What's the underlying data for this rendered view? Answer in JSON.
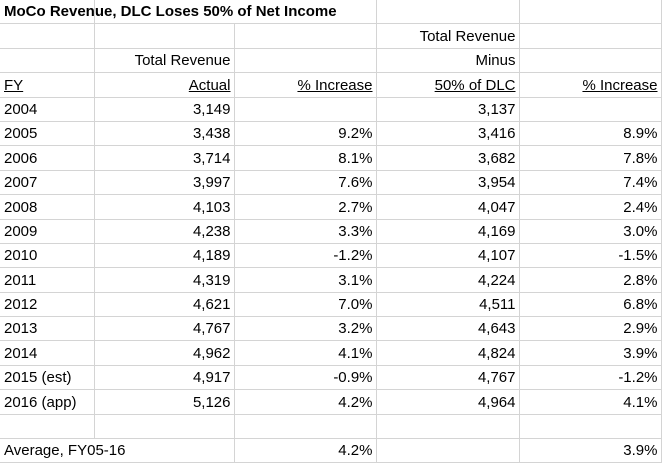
{
  "title": "MoCo Revenue, DLC Loses 50% of Net Income",
  "headers": {
    "actual_line1": "Total Revenue",
    "actual_line2": "Actual",
    "minus_line1": "Total Revenue",
    "minus_line2": "Minus",
    "minus_line3": "50% of DLC",
    "fy": "FY",
    "pct1": "% Increase",
    "pct2": "% Increase"
  },
  "rows": [
    {
      "fy": "2004",
      "actual": "3,149",
      "pct1": "",
      "minus": "3,137",
      "pct2": ""
    },
    {
      "fy": "2005",
      "actual": "3,438",
      "pct1": "9.2%",
      "minus": "3,416",
      "pct2": "8.9%"
    },
    {
      "fy": "2006",
      "actual": "3,714",
      "pct1": "8.1%",
      "minus": "3,682",
      "pct2": "7.8%"
    },
    {
      "fy": "2007",
      "actual": "3,997",
      "pct1": "7.6%",
      "minus": "3,954",
      "pct2": "7.4%"
    },
    {
      "fy": "2008",
      "actual": "4,103",
      "pct1": "2.7%",
      "minus": "4,047",
      "pct2": "2.4%"
    },
    {
      "fy": "2009",
      "actual": "4,238",
      "pct1": "3.3%",
      "minus": "4,169",
      "pct2": "3.0%"
    },
    {
      "fy": "2010",
      "actual": "4,189",
      "pct1": "-1.2%",
      "minus": "4,107",
      "pct2": "-1.5%"
    },
    {
      "fy": "2011",
      "actual": "4,319",
      "pct1": "3.1%",
      "minus": "4,224",
      "pct2": "2.8%"
    },
    {
      "fy": "2012",
      "actual": "4,621",
      "pct1": "7.0%",
      "minus": "4,511",
      "pct2": "6.8%"
    },
    {
      "fy": "2013",
      "actual": "4,767",
      "pct1": "3.2%",
      "minus": "4,643",
      "pct2": "2.9%"
    },
    {
      "fy": "2014",
      "actual": "4,962",
      "pct1": "4.1%",
      "minus": "4,824",
      "pct2": "3.9%"
    },
    {
      "fy": "2015 (est)",
      "actual": "4,917",
      "pct1": "-0.9%",
      "minus": "4,767",
      "pct2": "-1.2%"
    },
    {
      "fy": "2016 (app)",
      "actual": "5,126",
      "pct1": "4.2%",
      "minus": "4,964",
      "pct2": "4.1%"
    }
  ],
  "average": {
    "label": "Average, FY05-16",
    "pct1": "4.2%",
    "pct2": "3.9%"
  }
}
